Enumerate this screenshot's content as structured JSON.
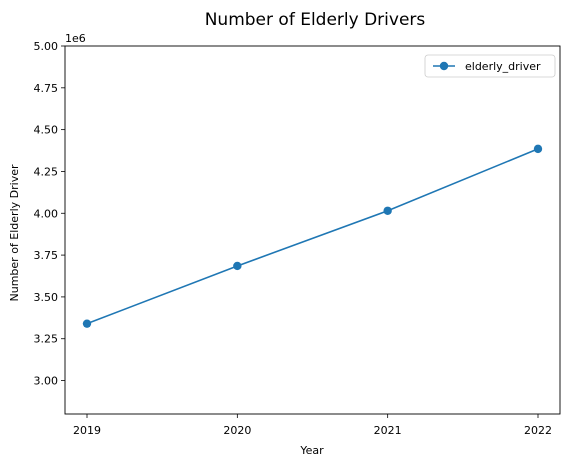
{
  "chart_data": {
    "type": "line",
    "title": "Number of Elderly Drivers",
    "xlabel": "Year",
    "ylabel": "Number of Elderly Driver",
    "y_offset_label": "1e6",
    "y_scale_factor": 1000000,
    "categories": [
      "2019",
      "2020",
      "2021",
      "2022"
    ],
    "series": [
      {
        "name": "elderly_driver",
        "color": "#1f77b4",
        "marker": "circle",
        "values": [
          3340000,
          3685000,
          4015000,
          4385000
        ]
      }
    ],
    "ylim": [
      2800000,
      5000000
    ],
    "yticks": [
      3000000,
      3250000,
      3500000,
      3750000,
      4000000,
      4250000,
      4500000,
      4750000,
      5000000
    ],
    "ytick_labels": [
      "3.00",
      "3.25",
      "3.50",
      "3.75",
      "4.00",
      "4.25",
      "4.50",
      "4.75",
      "5.00"
    ],
    "grid": false,
    "legend_position": "top-right"
  }
}
